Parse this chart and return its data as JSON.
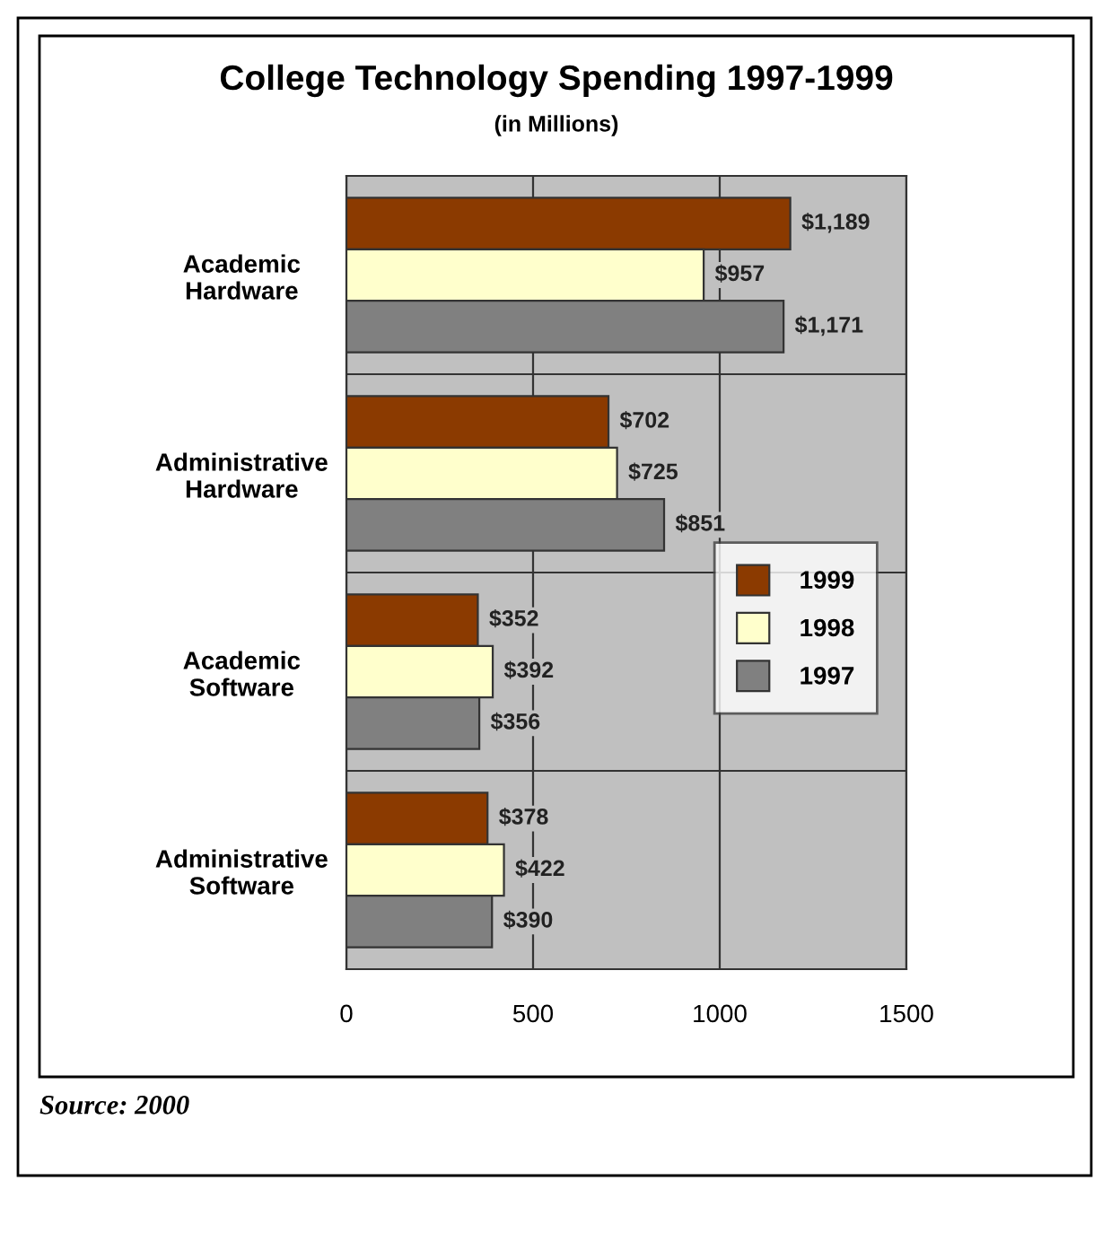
{
  "chart_data": {
    "type": "bar",
    "orientation": "horizontal",
    "title": "College Technology Spending 1997-1999",
    "subtitle": "(in Millions)",
    "categories": [
      "Academic\nHardware",
      "Administrative\nHardware",
      "Academic\nSoftware",
      "Administrative\nSoftware"
    ],
    "series": [
      {
        "name": "1999",
        "color": "#8b3a00",
        "values": [
          1189,
          702,
          352,
          378
        ],
        "value_labels": [
          "$1,189",
          "$702",
          "$352",
          "$378"
        ]
      },
      {
        "name": "1998",
        "color": "#ffffcc",
        "values": [
          957,
          725,
          392,
          422
        ],
        "value_labels": [
          "$957",
          "$725",
          "$392",
          "$422"
        ]
      },
      {
        "name": "1997",
        "color": "#808080",
        "values": [
          1171,
          851,
          356,
          390
        ],
        "value_labels": [
          "$1,171",
          "$851",
          "$356",
          "$390"
        ]
      }
    ],
    "xlim": [
      0,
      1500
    ],
    "xticks": [
      0,
      500,
      1000,
      1500
    ],
    "grid": true,
    "legend": "center right",
    "annotations": [
      "Source: 2000"
    ]
  }
}
